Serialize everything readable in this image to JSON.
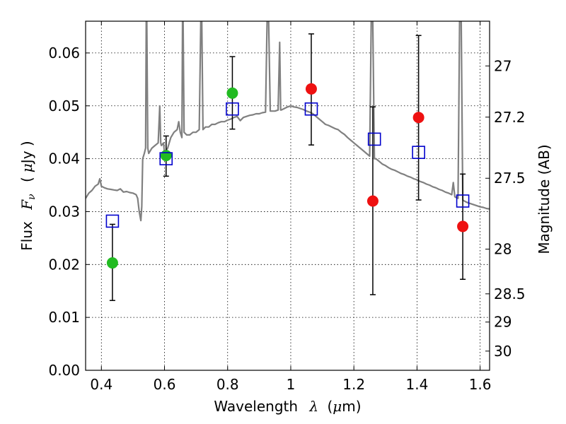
{
  "chart_data": {
    "type": "scatter",
    "title": "",
    "xlabel": {
      "prefix": "Wavelength",
      "symbol": "λ",
      "unit_open": "(",
      "unit_sym": "μ",
      "unit_rest": "m)"
    },
    "ylabel": {
      "prefix": "Flux",
      "symbol": "F",
      "subscript": "ν",
      "unit_open": "(",
      "unit_sym": "μ",
      "unit_rest": "Jy )"
    },
    "y2label": "Magnitude (AB)",
    "xlim": [
      0.35,
      1.63
    ],
    "ylim": [
      0.0,
      0.066
    ],
    "x_ticks": [
      {
        "value": 0.4,
        "label": "0.4"
      },
      {
        "value": 0.6,
        "label": "0.6"
      },
      {
        "value": 0.8,
        "label": "0.8"
      },
      {
        "value": 1.0,
        "label": "1"
      },
      {
        "value": 1.2,
        "label": "1.2"
      },
      {
        "value": 1.4,
        "label": "1.4"
      },
      {
        "value": 1.6,
        "label": "1.6"
      }
    ],
    "y_ticks": [
      {
        "value": 0.0,
        "label": "0.00"
      },
      {
        "value": 0.01,
        "label": "0.01"
      },
      {
        "value": 0.02,
        "label": "0.02"
      },
      {
        "value": 0.03,
        "label": "0.03"
      },
      {
        "value": 0.04,
        "label": "0.04"
      },
      {
        "value": 0.05,
        "label": "0.05"
      },
      {
        "value": 0.06,
        "label": "0.06"
      }
    ],
    "y2_ticks": [
      {
        "mag": 27,
        "label": "27"
      },
      {
        "mag": 27.2,
        "label": "27.2"
      },
      {
        "mag": 27.5,
        "label": "27.5"
      },
      {
        "mag": 28,
        "label": "28"
      },
      {
        "mag": 28.5,
        "label": "28.5"
      },
      {
        "mag": 29,
        "label": "29"
      },
      {
        "mag": 30,
        "label": "30"
      }
    ],
    "grid": true,
    "colors": {
      "template": "#808080",
      "observed_green": "#22bb22",
      "observed_red": "#ee1111",
      "model_box": "#0000cc",
      "errorbar": "#000000"
    },
    "series": [
      {
        "kind": "template_spectrum",
        "points": [
          [
            0.35,
            0.0325
          ],
          [
            0.36,
            0.0335
          ],
          [
            0.37,
            0.034
          ],
          [
            0.38,
            0.0348
          ],
          [
            0.39,
            0.0352
          ],
          [
            0.395,
            0.0362
          ],
          [
            0.4,
            0.0348
          ],
          [
            0.41,
            0.0345
          ],
          [
            0.42,
            0.0343
          ],
          [
            0.43,
            0.0342
          ],
          [
            0.44,
            0.0341
          ],
          [
            0.45,
            0.034
          ],
          [
            0.46,
            0.0343
          ],
          [
            0.47,
            0.0337
          ],
          [
            0.48,
            0.0338
          ],
          [
            0.49,
            0.0336
          ],
          [
            0.5,
            0.0335
          ],
          [
            0.51,
            0.0332
          ],
          [
            0.515,
            0.0325
          ],
          [
            0.52,
            0.03
          ],
          [
            0.525,
            0.0283
          ],
          [
            0.528,
            0.031
          ],
          [
            0.531,
            0.04
          ],
          [
            0.536,
            0.041
          ],
          [
            0.54,
            0.042
          ],
          [
            0.542,
            0.066
          ],
          [
            0.544,
            0.066
          ],
          [
            0.547,
            0.042
          ],
          [
            0.55,
            0.041
          ],
          [
            0.56,
            0.042
          ],
          [
            0.57,
            0.0425
          ],
          [
            0.58,
            0.043
          ],
          [
            0.585,
            0.05
          ],
          [
            0.588,
            0.043
          ],
          [
            0.59,
            0.0425
          ],
          [
            0.597,
            0.043
          ],
          [
            0.6,
            0.041
          ],
          [
            0.61,
            0.042
          ],
          [
            0.62,
            0.044
          ],
          [
            0.63,
            0.045
          ],
          [
            0.64,
            0.0455
          ],
          [
            0.645,
            0.047
          ],
          [
            0.65,
            0.045
          ],
          [
            0.655,
            0.044
          ],
          [
            0.657,
            0.066
          ],
          [
            0.659,
            0.066
          ],
          [
            0.662,
            0.045
          ],
          [
            0.67,
            0.0445
          ],
          [
            0.68,
            0.0445
          ],
          [
            0.69,
            0.045
          ],
          [
            0.7,
            0.045
          ],
          [
            0.71,
            0.0455
          ],
          [
            0.715,
            0.066
          ],
          [
            0.718,
            0.066
          ],
          [
            0.722,
            0.0455
          ],
          [
            0.73,
            0.046
          ],
          [
            0.74,
            0.046
          ],
          [
            0.75,
            0.0465
          ],
          [
            0.76,
            0.0465
          ],
          [
            0.77,
            0.0468
          ],
          [
            0.78,
            0.047
          ],
          [
            0.79,
            0.047
          ],
          [
            0.8,
            0.0473
          ],
          [
            0.81,
            0.0475
          ],
          [
            0.82,
            0.0478
          ],
          [
            0.83,
            0.048
          ],
          [
            0.84,
            0.0472
          ],
          [
            0.85,
            0.0478
          ],
          [
            0.86,
            0.048
          ],
          [
            0.87,
            0.0482
          ],
          [
            0.88,
            0.0483
          ],
          [
            0.89,
            0.0485
          ],
          [
            0.9,
            0.0485
          ],
          [
            0.91,
            0.0487
          ],
          [
            0.92,
            0.0488
          ],
          [
            0.925,
            0.066
          ],
          [
            0.93,
            0.066
          ],
          [
            0.935,
            0.049
          ],
          [
            0.94,
            0.049
          ],
          [
            0.95,
            0.049
          ],
          [
            0.96,
            0.0492
          ],
          [
            0.965,
            0.062
          ],
          [
            0.968,
            0.0492
          ],
          [
            0.97,
            0.0492
          ],
          [
            0.98,
            0.0495
          ],
          [
            0.99,
            0.0498
          ],
          [
            1.0,
            0.05
          ],
          [
            1.01,
            0.0498
          ],
          [
            1.02,
            0.0497
          ],
          [
            1.03,
            0.0495
          ],
          [
            1.04,
            0.0493
          ],
          [
            1.05,
            0.049
          ],
          [
            1.06,
            0.0488
          ],
          [
            1.07,
            0.0485
          ],
          [
            1.08,
            0.048
          ],
          [
            1.09,
            0.0475
          ],
          [
            1.1,
            0.047
          ],
          [
            1.11,
            0.0465
          ],
          [
            1.12,
            0.0463
          ],
          [
            1.13,
            0.046
          ],
          [
            1.14,
            0.0457
          ],
          [
            1.15,
            0.0455
          ],
          [
            1.16,
            0.045
          ],
          [
            1.17,
            0.0446
          ],
          [
            1.18,
            0.044
          ],
          [
            1.19,
            0.0435
          ],
          [
            1.2,
            0.043
          ],
          [
            1.21,
            0.0425
          ],
          [
            1.22,
            0.042
          ],
          [
            1.23,
            0.0415
          ],
          [
            1.24,
            0.041
          ],
          [
            1.25,
            0.0405
          ],
          [
            1.255,
            0.066
          ],
          [
            1.26,
            0.066
          ],
          [
            1.265,
            0.04
          ],
          [
            1.27,
            0.04
          ],
          [
            1.28,
            0.0395
          ],
          [
            1.29,
            0.039
          ],
          [
            1.3,
            0.0387
          ],
          [
            1.31,
            0.0383
          ],
          [
            1.32,
            0.038
          ],
          [
            1.33,
            0.0378
          ],
          [
            1.34,
            0.0375
          ],
          [
            1.35,
            0.0372
          ],
          [
            1.36,
            0.037
          ],
          [
            1.37,
            0.0367
          ],
          [
            1.38,
            0.0365
          ],
          [
            1.39,
            0.0362
          ],
          [
            1.4,
            0.036
          ],
          [
            1.41,
            0.0357
          ],
          [
            1.42,
            0.0355
          ],
          [
            1.43,
            0.0352
          ],
          [
            1.44,
            0.035
          ],
          [
            1.45,
            0.0347
          ],
          [
            1.46,
            0.0345
          ],
          [
            1.47,
            0.0342
          ],
          [
            1.48,
            0.034
          ],
          [
            1.49,
            0.0337
          ],
          [
            1.5,
            0.0335
          ],
          [
            1.51,
            0.0332
          ],
          [
            1.515,
            0.0355
          ],
          [
            1.52,
            0.0328
          ],
          [
            1.53,
            0.0325
          ],
          [
            1.535,
            0.066
          ],
          [
            1.54,
            0.066
          ],
          [
            1.545,
            0.0322
          ],
          [
            1.55,
            0.032
          ],
          [
            1.56,
            0.0317
          ],
          [
            1.57,
            0.0315
          ],
          [
            1.58,
            0.0313
          ],
          [
            1.59,
            0.0311
          ],
          [
            1.6,
            0.0309
          ],
          [
            1.61,
            0.0308
          ],
          [
            1.62,
            0.0306
          ],
          [
            1.63,
            0.0305
          ]
        ]
      },
      {
        "kind": "observed_with_errors",
        "points": [
          {
            "x": 0.435,
            "y": 0.0203,
            "ylo": 0.0132,
            "yhi": 0.0276,
            "color": "green"
          },
          {
            "x": 0.605,
            "y": 0.0406,
            "ylo": 0.0367,
            "yhi": 0.0443,
            "color": "green"
          },
          {
            "x": 0.815,
            "y": 0.0524,
            "ylo": 0.0456,
            "yhi": 0.0593,
            "color": "green"
          },
          {
            "x": 1.065,
            "y": 0.0532,
            "ylo": 0.0426,
            "yhi": 0.0636,
            "color": "red"
          },
          {
            "x": 1.26,
            "y": 0.032,
            "ylo": 0.0143,
            "yhi": 0.0498,
            "color": "red"
          },
          {
            "x": 1.405,
            "y": 0.0478,
            "ylo": 0.0322,
            "yhi": 0.0633,
            "color": "red"
          },
          {
            "x": 1.545,
            "y": 0.0272,
            "ylo": 0.0172,
            "yhi": 0.0371,
            "color": "red"
          }
        ]
      },
      {
        "kind": "model_photometry",
        "points": [
          {
            "x": 0.435,
            "y": 0.0282
          },
          {
            "x": 0.605,
            "y": 0.04
          },
          {
            "x": 0.815,
            "y": 0.0494
          },
          {
            "x": 1.065,
            "y": 0.0494
          },
          {
            "x": 1.265,
            "y": 0.0437
          },
          {
            "x": 1.405,
            "y": 0.0412
          },
          {
            "x": 1.545,
            "y": 0.032
          }
        ]
      }
    ]
  }
}
